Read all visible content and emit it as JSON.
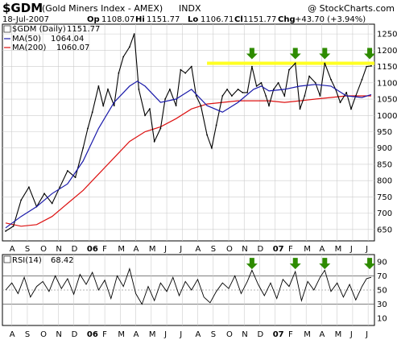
{
  "header": {
    "symbol": "$GDM",
    "name": "(Gold Miners Index - AMEX)",
    "exchange": "INDX",
    "date": "18-Jul-2007",
    "open_label": "Op",
    "open_value": "1108.07",
    "high_label": "Hi",
    "high_value": "1151.77",
    "low_label": "Lo",
    "low_value": "1106.71",
    "close_label": "Cl",
    "close_value": "1151.77",
    "change_label": "Chg",
    "change_value": "+43.70 (+3.94%)",
    "copyright": "@ StockCharts.com"
  },
  "colors": {
    "price": "#000000",
    "ma50": "#1a1aaa",
    "ma200": "#dd1111",
    "resistance_band": "#ffff22",
    "arrow": "#2e8b00",
    "grid": "#cccccc"
  },
  "chart_data": [
    {
      "type": "line",
      "panel": "price",
      "legend": [
        {
          "name": "$GDM (Daily)",
          "value": "1151.77",
          "color": "#000000"
        },
        {
          "name": "MA(50)",
          "value": "1064.04",
          "color": "#1a1aaa"
        },
        {
          "name": "MA(200)",
          "value": "1060.07",
          "color": "#dd1111"
        }
      ],
      "legend_position": "top-left",
      "y_ticks": [
        650,
        700,
        750,
        800,
        850,
        900,
        950,
        1000,
        1050,
        1100,
        1150,
        1200,
        1250
      ],
      "ylim": [
        615,
        1280
      ],
      "grid": true,
      "x_labels": [
        "A",
        "S",
        "O",
        "N",
        "D",
        "06",
        "F",
        "M",
        "A",
        "M",
        "J",
        "J",
        "A",
        "S",
        "O",
        "N",
        "D",
        "07",
        "F",
        "M",
        "A",
        "M",
        "J",
        "J"
      ],
      "x_index_range": [
        0,
        23.6
      ],
      "resistance_level": [
        1165,
        1155
      ],
      "markers": [
        {
          "type": "arrow-down",
          "x": 15.9,
          "y": 1170
        },
        {
          "type": "arrow-down",
          "x": 18.7,
          "y": 1170
        },
        {
          "type": "arrow-down",
          "x": 20.6,
          "y": 1170
        },
        {
          "type": "arrow-down",
          "x": 23.5,
          "y": 1170
        }
      ],
      "series": [
        {
          "name": "$GDM (Daily)",
          "x": [
            0,
            0.5,
            1,
            1.5,
            2,
            2.5,
            3,
            3.5,
            4,
            4.5,
            5,
            5.3,
            5.6,
            6,
            6.3,
            6.6,
            7,
            7.3,
            7.6,
            8,
            8.3,
            8.6,
            9,
            9.3,
            9.6,
            10,
            10.3,
            10.6,
            11,
            11.3,
            11.6,
            12,
            12.3,
            12.6,
            13,
            13.3,
            13.6,
            14,
            14.3,
            14.6,
            15,
            15.3,
            15.6,
            15.9,
            16.2,
            16.5,
            16.8,
            17,
            17.3,
            17.6,
            18,
            18.3,
            18.7,
            19,
            19.3,
            19.6,
            20,
            20.3,
            20.6,
            21,
            21.3,
            21.6,
            22,
            22.3,
            22.6,
            23,
            23.3,
            23.6
          ],
          "values": [
            645,
            660,
            740,
            780,
            720,
            760,
            730,
            780,
            830,
            810,
            900,
            960,
            1010,
            1090,
            1030,
            1080,
            1030,
            1130,
            1180,
            1210,
            1250,
            1080,
            1000,
            1020,
            920,
            960,
            1050,
            1080,
            1030,
            1140,
            1130,
            1150,
            1060,
            1030,
            940,
            900,
            970,
            1060,
            1080,
            1060,
            1080,
            1070,
            1070,
            1150,
            1090,
            1100,
            1060,
            1030,
            1080,
            1100,
            1060,
            1140,
            1160,
            1020,
            1060,
            1120,
            1100,
            1060,
            1160,
            1110,
            1080,
            1040,
            1070,
            1020,
            1060,
            1110,
            1150,
            1152
          ]
        },
        {
          "name": "MA(50)",
          "x": [
            0,
            1,
            2,
            3,
            4,
            5,
            6,
            7,
            8,
            8.5,
            9,
            10,
            11,
            12,
            13,
            14,
            15,
            16,
            16.5,
            17,
            18,
            19,
            20,
            21,
            22,
            23,
            23.6
          ],
          "values": [
            655,
            690,
            720,
            760,
            790,
            860,
            960,
            1040,
            1090,
            1105,
            1090,
            1040,
            1050,
            1080,
            1030,
            1010,
            1040,
            1080,
            1090,
            1075,
            1080,
            1090,
            1095,
            1090,
            1060,
            1055,
            1064
          ]
        },
        {
          "name": "MA(200)",
          "x": [
            0,
            1,
            2,
            3,
            4,
            5,
            6,
            7,
            8,
            9,
            10,
            11,
            12,
            13,
            14,
            15,
            16,
            17,
            18,
            19,
            20,
            21,
            22,
            23,
            23.6
          ],
          "values": [
            670,
            660,
            665,
            690,
            730,
            770,
            820,
            870,
            920,
            950,
            965,
            990,
            1020,
            1035,
            1040,
            1045,
            1045,
            1045,
            1040,
            1045,
            1050,
            1055,
            1060,
            1060,
            1060
          ]
        }
      ]
    },
    {
      "type": "line",
      "panel": "rsi",
      "legend": [
        {
          "name": "RSI(14)",
          "value": "68.42",
          "color": "#000000"
        }
      ],
      "legend_position": "top-left",
      "y_ticks": [
        10,
        30,
        50,
        70,
        90
      ],
      "ylim": [
        0,
        100
      ],
      "reference_lines": [
        30,
        50,
        70
      ],
      "markers": [
        {
          "type": "arrow-down",
          "x": 15.9,
          "y": 84
        },
        {
          "type": "arrow-down",
          "x": 18.7,
          "y": 84
        },
        {
          "type": "arrow-down",
          "x": 20.6,
          "y": 84
        },
        {
          "type": "arrow-down",
          "x": 23.5,
          "y": 84
        }
      ],
      "series": [
        {
          "name": "RSI(14)",
          "x": [
            0,
            0.4,
            0.8,
            1.2,
            1.6,
            2,
            2.4,
            2.8,
            3.2,
            3.6,
            4,
            4.4,
            4.8,
            5.2,
            5.6,
            6,
            6.4,
            6.8,
            7.2,
            7.6,
            8,
            8.4,
            8.8,
            9.2,
            9.6,
            10,
            10.4,
            10.8,
            11.2,
            11.6,
            12,
            12.4,
            12.8,
            13.2,
            13.6,
            14,
            14.4,
            14.8,
            15.2,
            15.6,
            15.9,
            16.3,
            16.7,
            17.1,
            17.5,
            17.9,
            18.3,
            18.7,
            19.1,
            19.5,
            19.9,
            20.3,
            20.6,
            21,
            21.4,
            21.8,
            22.2,
            22.6,
            23,
            23.3,
            23.6
          ],
          "values": [
            50,
            60,
            45,
            68,
            40,
            55,
            62,
            48,
            70,
            52,
            66,
            44,
            72,
            58,
            75,
            50,
            64,
            38,
            70,
            55,
            80,
            45,
            30,
            55,
            35,
            60,
            48,
            68,
            42,
            62,
            50,
            65,
            40,
            32,
            48,
            60,
            52,
            70,
            45,
            62,
            78,
            58,
            42,
            60,
            38,
            65,
            55,
            76,
            35,
            62,
            50,
            68,
            78,
            48,
            60,
            40,
            58,
            36,
            55,
            66,
            68
          ]
        }
      ]
    }
  ],
  "x_axis_months": [
    "A",
    "S",
    "O",
    "N",
    "D",
    "06",
    "F",
    "M",
    "A",
    "M",
    "J",
    "J",
    "A",
    "S",
    "O",
    "N",
    "D",
    "07",
    "F",
    "M",
    "A",
    "M",
    "J",
    "J"
  ]
}
